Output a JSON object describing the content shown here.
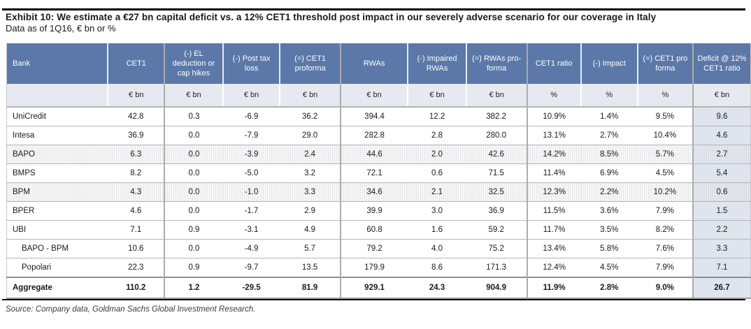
{
  "exhibit": {
    "title": "Exhibit 10: We estimate a €27 bn capital deficit vs. a 12% CET1 threshold post impact in our severely adverse scenario for our coverage in Italy",
    "subtitle": "Data as of 1Q16, € bn or %",
    "source": "Source: Company data, Goldman Sachs Global Investment Research."
  },
  "colors": {
    "header_blue": "#5b78a8",
    "units_row_bg": "#e6e9f0",
    "deficit_col_bg": "#dfe4ee",
    "rule_black": "#000000"
  },
  "table": {
    "columns": [
      {
        "key": "bank",
        "label": "Bank",
        "unit": "",
        "group_border": false
      },
      {
        "key": "cet1",
        "label": "CET1",
        "unit": "€ bn",
        "group_border": true
      },
      {
        "key": "el_deduction",
        "label": "(-) EL deduction or cap hikes",
        "unit": "€ bn",
        "group_border": false
      },
      {
        "key": "post_tax_loss",
        "label": "(-) Post tax loss",
        "unit": "€ bn",
        "group_border": false
      },
      {
        "key": "cet1_proforma",
        "label": "(=) CET1 proforma",
        "unit": "€ bn",
        "group_border": true
      },
      {
        "key": "rwas",
        "label": "RWAs",
        "unit": "€ bn",
        "group_border": false
      },
      {
        "key": "impaired_rwas",
        "label": "(-) Impaired RWAs",
        "unit": "€ bn",
        "group_border": false
      },
      {
        "key": "rwas_proforma",
        "label": "(=) RWAs pro-forma",
        "unit": "€ bn",
        "group_border": true
      },
      {
        "key": "cet1_ratio",
        "label": "CET1 ratio",
        "unit": "%",
        "group_border": false
      },
      {
        "key": "impact",
        "label": "(-) Impact",
        "unit": "%",
        "group_border": false
      },
      {
        "key": "cet1_pro_forma",
        "label": "(=) CET1 pro forma",
        "unit": "%",
        "group_border": true
      },
      {
        "key": "deficit",
        "label": "Deficit @ 12% CET1 ratio",
        "unit": "€ bn",
        "group_border": false
      }
    ],
    "rows": [
      {
        "bank": "UniCredit",
        "values": [
          "42.8",
          "0.3",
          "-6.9",
          "36.2",
          "394.4",
          "12.2",
          "382.2",
          "10.9%",
          "1.4%",
          "9.5%",
          "9.6"
        ],
        "shaded": false,
        "indent": false,
        "aggregate": false
      },
      {
        "bank": "Intesa",
        "values": [
          "36.9",
          "0.0",
          "-7.9",
          "29.0",
          "282.8",
          "2.8",
          "280.0",
          "13.1%",
          "2.7%",
          "10.4%",
          "4.6"
        ],
        "shaded": false,
        "indent": false,
        "aggregate": false
      },
      {
        "bank": "BAPO",
        "values": [
          "6.3",
          "0.0",
          "-3.9",
          "2.4",
          "44.6",
          "2.0",
          "42.6",
          "14.2%",
          "8.5%",
          "5.7%",
          "2.7"
        ],
        "shaded": true,
        "indent": false,
        "aggregate": false
      },
      {
        "bank": "BMPS",
        "values": [
          "8.2",
          "0.0",
          "-5.0",
          "3.2",
          "72.1",
          "0.6",
          "71.5",
          "11.4%",
          "6.9%",
          "4.5%",
          "5.4"
        ],
        "shaded": false,
        "indent": false,
        "aggregate": false
      },
      {
        "bank": "BPM",
        "values": [
          "4.3",
          "0.0",
          "-1.0",
          "3.3",
          "34.6",
          "2.1",
          "32.5",
          "12.3%",
          "2.2%",
          "10.2%",
          "0.6"
        ],
        "shaded": true,
        "indent": false,
        "aggregate": false
      },
      {
        "bank": "BPER",
        "values": [
          "4.6",
          "0.0",
          "-1.7",
          "2.9",
          "39.9",
          "3.0",
          "36.9",
          "11.5%",
          "3.6%",
          "7.9%",
          "1.5"
        ],
        "shaded": false,
        "indent": false,
        "aggregate": false
      },
      {
        "bank": "UBI",
        "values": [
          "7.1",
          "0.9",
          "-3.1",
          "4.9",
          "60.8",
          "1.6",
          "59.2",
          "11.7%",
          "3.5%",
          "8.2%",
          "2.2"
        ],
        "shaded": false,
        "indent": false,
        "aggregate": false
      },
      {
        "bank": "BAPO - BPM",
        "values": [
          "10.6",
          "0.0",
          "-4.9",
          "5.7",
          "79.2",
          "4.0",
          "75.2",
          "13.4%",
          "5.8%",
          "7.6%",
          "3.3"
        ],
        "shaded": false,
        "indent": true,
        "aggregate": false
      },
      {
        "bank": "Popolari",
        "values": [
          "22.3",
          "0.9",
          "-9.7",
          "13.5",
          "179.9",
          "8.6",
          "171.3",
          "12.4%",
          "4.5%",
          "7.9%",
          "7.1"
        ],
        "shaded": false,
        "indent": true,
        "aggregate": false
      },
      {
        "bank": "Aggregate",
        "values": [
          "110.2",
          "1.2",
          "-29.5",
          "81.9",
          "929.1",
          "24.3",
          "904.9",
          "11.9%",
          "2.8%",
          "9.0%",
          "26.7"
        ],
        "shaded": false,
        "indent": false,
        "aggregate": true
      }
    ]
  }
}
